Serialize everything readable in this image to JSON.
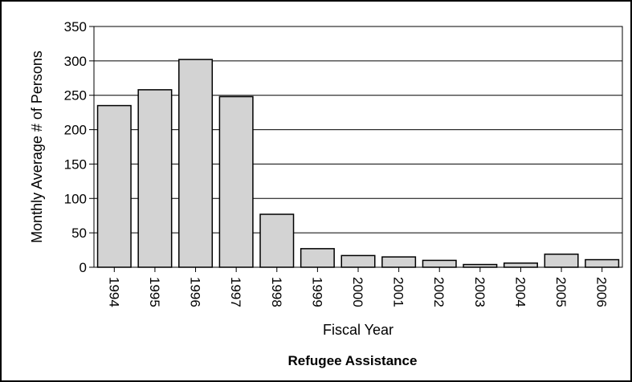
{
  "chart_data": {
    "type": "bar",
    "title": "Refugee Assistance",
    "xlabel": "Fiscal Year",
    "ylabel": "Monthly Average # of Persons",
    "categories": [
      "1994",
      "1995",
      "1996",
      "1997",
      "1998",
      "1999",
      "2000",
      "2001",
      "2002",
      "2003",
      "2004",
      "2005",
      "2006"
    ],
    "values": [
      235,
      258,
      302,
      248,
      77,
      27,
      17,
      15,
      10,
      4,
      6,
      19,
      11
    ],
    "ylim": [
      0,
      350
    ],
    "yticks": [
      "0",
      "50",
      "100",
      "150",
      "200",
      "250",
      "300",
      "350"
    ],
    "grid": true,
    "bar_color": "#d3d3d3",
    "bar_edge_color": "#000000"
  }
}
